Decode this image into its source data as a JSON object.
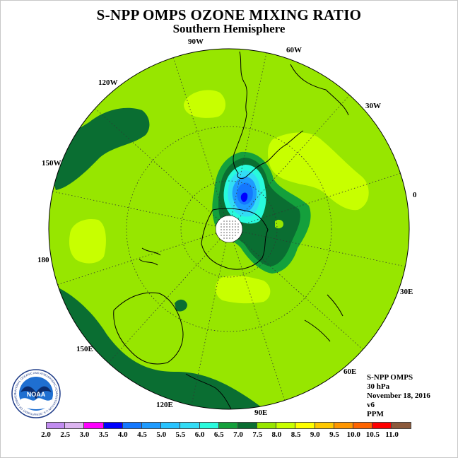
{
  "title": "S-NPP OMPS OZONE MIXING RATIO",
  "subtitle": "Southern Hemisphere",
  "longitude_labels": [
    "90W",
    "60W",
    "30W",
    "0",
    "30E",
    "60E",
    "90E",
    "120E",
    "150E",
    "180",
    "150W",
    "120W"
  ],
  "info_lines": [
    "S-NPP OMPS",
    "30 hPa",
    "November 18, 2016",
    "v6",
    "PPM"
  ],
  "logo": {
    "text": "NOAA",
    "ring_text": "NATIONAL OCEANIC AND ATMOSPHERIC ADMINISTRATION  U.S. DEPARTMENT OF COMMERCE"
  },
  "colorbar": {
    "ticks": [
      "2.0",
      "2.5",
      "3.0",
      "3.5",
      "4.0",
      "4.5",
      "5.0",
      "5.5",
      "6.0",
      "6.5",
      "7.0",
      "7.5",
      "8.0",
      "8.5",
      "9.0",
      "9.5",
      "10.0",
      "10.5",
      "11.0"
    ],
    "colors": [
      "#c18cf0",
      "#dcb4f0",
      "#ff00ff",
      "#0000ff",
      "#1478ff",
      "#1e9bff",
      "#28c3ff",
      "#32dcf5",
      "#28fadc",
      "#14a03c",
      "#0a6e32",
      "#97e600",
      "#c8ff00",
      "#ffff00",
      "#ffc800",
      "#ff9600",
      "#ff6400",
      "#ff0000",
      "#8c5a3c"
    ]
  },
  "palette": {
    "background_level": "#97e600",
    "dark_green": "#0a6e32",
    "medium_green": "#14a03c",
    "light_yellow_green": "#c8ff00",
    "cyan": "#28fadc",
    "light_blue": "#32dcf5",
    "blue": "#1e9bff",
    "deep_blue": "#1478ff",
    "darkest_blue": "#0000ff"
  }
}
